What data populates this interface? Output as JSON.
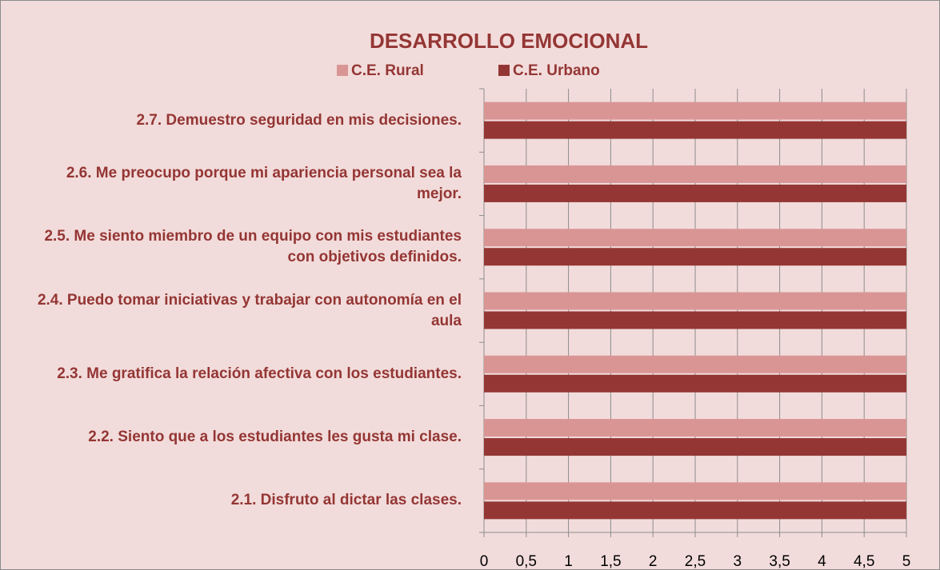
{
  "chart_data": {
    "type": "bar",
    "orientation": "horizontal",
    "title": "DESARROLLO EMOCIONAL",
    "categories": [
      "2.1.  Disfruto al dictar las clases.",
      "2.2.  Siento que a los estudiantes les gusta mi clase.",
      "2.3.  Me gratifica la relación afectiva con los estudiantes.",
      "2.4.  Puedo tomar iniciativas y trabajar con autonomía en el aula",
      "2.5.  Me siento miembro de un equipo  con mis estudiantes con objetivos definidos.",
      "2.6.  Me preocupo porque mi apariencia personal sea la mejor.",
      "2.7.  Demuestro seguridad en mis decisiones."
    ],
    "series": [
      {
        "name": "C.E. Rural",
        "color": "#d99594",
        "values": [
          5,
          5,
          5,
          5,
          5,
          5,
          5
        ]
      },
      {
        "name": "C.E. Urbano",
        "color": "#943634",
        "values": [
          5,
          5,
          5,
          5,
          5,
          5,
          5
        ]
      }
    ],
    "xlim": [
      0,
      5
    ],
    "xticks": [
      0,
      {
        "value": 0.5,
        "label": "0,5"
      },
      1,
      {
        "value": 1.5,
        "label": "1,5"
      },
      2,
      {
        "value": 2.5,
        "label": "2,5"
      },
      3,
      {
        "value": 3.5,
        "label": "3,5"
      },
      4,
      {
        "value": 4.5,
        "label": "4,5"
      },
      5
    ],
    "grid": true,
    "legend": "top"
  }
}
